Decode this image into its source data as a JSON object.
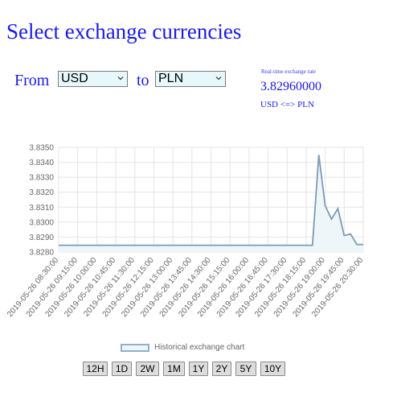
{
  "title": "Select exchange currencies",
  "form": {
    "from_label": "From",
    "from_value": "USD",
    "to_label": "to",
    "to_value": "PLN"
  },
  "realtime": {
    "label": "Real-time exchange rate",
    "value": "3.82960000",
    "pair": "USD <=> PLN"
  },
  "chart_data": {
    "type": "line",
    "y_ticks": [
      "3.8350",
      "3.8340",
      "3.8330",
      "3.8320",
      "3.8310",
      "3.8300",
      "3.8290",
      "3.8280"
    ],
    "ylim": [
      3.828,
      3.835
    ],
    "x_ticks": [
      "2019-05-26 08:30:00",
      "2019-05-26 09:15:00",
      "2019-05-26 10:00:00",
      "2019-05-26 10:45:00",
      "2019-05-26 11:30:00",
      "2019-05-26 12:15:00",
      "2019-05-26 13:00:00",
      "2019-05-26 13:45:00",
      "2019-05-26 14:30:00",
      "2019-05-26 15:15:00",
      "2019-05-26 16:00:00",
      "2019-05-26 16:45:00",
      "2019-05-26 17:30:00",
      "2019-05-26 18:15:00",
      "2019-05-26 19:00:00",
      "2019-05-26 19:45:00",
      "2019-05-26 20:30:00"
    ],
    "series": [
      {
        "name": "Historical exchange chart",
        "x": [
          "2019-05-26 08:30:00",
          "2019-05-26 09:15:00",
          "2019-05-26 10:00:00",
          "2019-05-26 10:45:00",
          "2019-05-26 11:30:00",
          "2019-05-26 12:15:00",
          "2019-05-26 13:00:00",
          "2019-05-26 13:45:00",
          "2019-05-26 14:30:00",
          "2019-05-26 15:15:00",
          "2019-05-26 16:00:00",
          "2019-05-26 16:45:00",
          "2019-05-26 17:30:00",
          "2019-05-26 18:15:00",
          "2019-05-26 18:30:00",
          "2019-05-26 18:45:00",
          "2019-05-26 19:00:00",
          "2019-05-26 19:15:00",
          "2019-05-26 19:30:00",
          "2019-05-26 19:45:00",
          "2019-05-26 20:00:00",
          "2019-05-26 20:15:00",
          "2019-05-26 20:30:00"
        ],
        "values": [
          3.82845,
          3.82845,
          3.82845,
          3.82845,
          3.82845,
          3.82845,
          3.82845,
          3.82845,
          3.82845,
          3.82845,
          3.82845,
          3.82845,
          3.82845,
          3.82845,
          3.82845,
          3.8345,
          3.8311,
          3.8302,
          3.8309,
          3.8291,
          3.8292,
          3.8285,
          3.8285
        ]
      }
    ],
    "grid": true,
    "legend_position": "bottom",
    "colors": {
      "line": "#7a9bb5",
      "fill": "#eef6fa",
      "grid": "#e4e4e4"
    }
  },
  "range_buttons": [
    "12H",
    "1D",
    "2W",
    "1M",
    "1Y",
    "2Y",
    "5Y",
    "10Y"
  ],
  "icons": {
    "dropdown": "chevron-down-icon"
  }
}
